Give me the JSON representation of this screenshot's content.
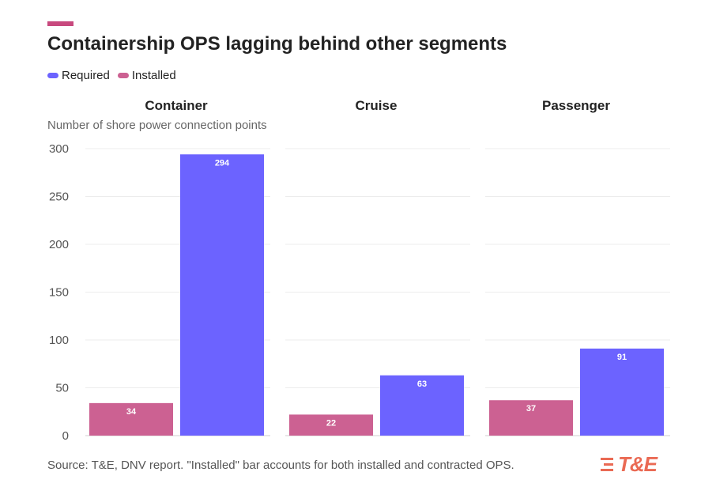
{
  "colors": {
    "required": "#6c63ff",
    "installed": "#cc6192",
    "accent": "#c8497e",
    "logo": "#ea6a54"
  },
  "title": "Containership OPS lagging behind other segments",
  "legend": {
    "required": "Required",
    "installed": "Installed"
  },
  "subtitle": "Number of shore power connection points",
  "footer": "Source: T&E, DNV report. \"Installed\" bar accounts for both installed and contracted OPS.",
  "logo": {
    "text": "T&E",
    "icon": "logo-stripes-icon"
  },
  "chart_data": {
    "type": "bar",
    "title": "Containership OPS lagging behind other segments",
    "ylabel": "Number of shore power connection points",
    "xlabel": "",
    "ylim": [
      0,
      300
    ],
    "yticks": [
      0,
      50,
      100,
      150,
      200,
      250,
      300
    ],
    "grid": true,
    "legend_position": "top-left",
    "panels": [
      {
        "name": "Container",
        "series": [
          {
            "name": "Installed",
            "value": 34
          },
          {
            "name": "Required",
            "value": 294
          }
        ]
      },
      {
        "name": "Cruise",
        "series": [
          {
            "name": "Installed",
            "value": 22
          },
          {
            "name": "Required",
            "value": 63
          }
        ]
      },
      {
        "name": "Passenger",
        "series": [
          {
            "name": "Installed",
            "value": 37
          },
          {
            "name": "Required",
            "value": 91
          }
        ]
      }
    ]
  }
}
